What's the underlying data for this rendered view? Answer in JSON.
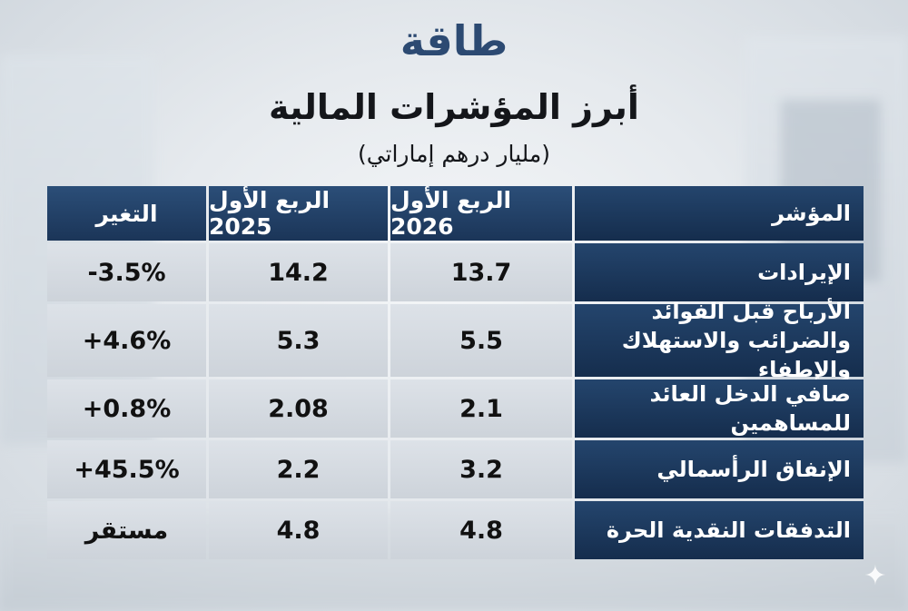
{
  "header": {
    "brand": "طاقة",
    "title": "أبرز المؤشرات المالية",
    "unit": "(مليار درهم إماراتي)"
  },
  "table": {
    "columns": [
      "المؤشر",
      "الربع الأول 2026",
      "الربع الأول 2025",
      "التغير"
    ],
    "rows": [
      {
        "indicator": "الإيرادات",
        "q1_2026": "13.7",
        "q1_2025": "14.2",
        "change": "-3.5%"
      },
      {
        "indicator": "الأرباح قبل الفوائد والضرائب والاستهلاك والإطفاء",
        "q1_2026": "5.5",
        "q1_2025": "5.3",
        "change": "+4.6%"
      },
      {
        "indicator": "صافي الدخل العائد للمساهمين",
        "q1_2026": "2.1",
        "q1_2025": "2.08",
        "change": "+0.8%"
      },
      {
        "indicator": "الإنفاق الرأسمالي",
        "q1_2026": "3.2",
        "q1_2025": "2.2",
        "change": "+45.5%"
      },
      {
        "indicator": "التدفقات النقدية الحرة",
        "q1_2026": "4.8",
        "q1_2025": "4.8",
        "change": "مستقر"
      }
    ]
  },
  "decor": {
    "sparkle_icon": "sparkle-icon",
    "accent_color": "#2c4a72",
    "header_color": "#1b3558"
  }
}
